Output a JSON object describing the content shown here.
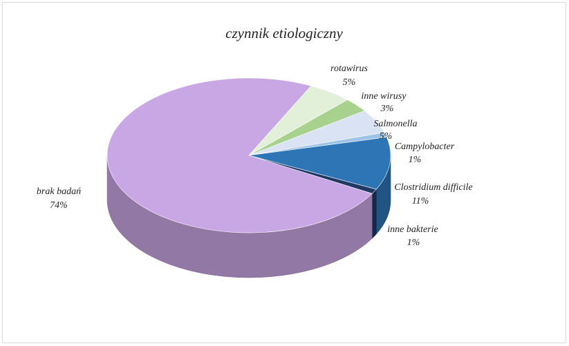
{
  "chart_data": {
    "type": "pie",
    "title": "czynnik etiologiczny",
    "categories": [
      "rotawirus",
      "inne wirusy",
      "Salmonella",
      "Campylobacter",
      "Clostridium difficile",
      "inne bakterie",
      "brak badań"
    ],
    "values": [
      5,
      3,
      5,
      1,
      11,
      1,
      74
    ],
    "value_labels": [
      "5%",
      "3%",
      "5%",
      "1%",
      "11%",
      "1%",
      "74%"
    ],
    "colors": [
      "#e2efd9",
      "#a9d18e",
      "#dae3f3",
      "#9dc3e6",
      "#2e75b6",
      "#1f3864",
      "#c9a7e5"
    ]
  }
}
